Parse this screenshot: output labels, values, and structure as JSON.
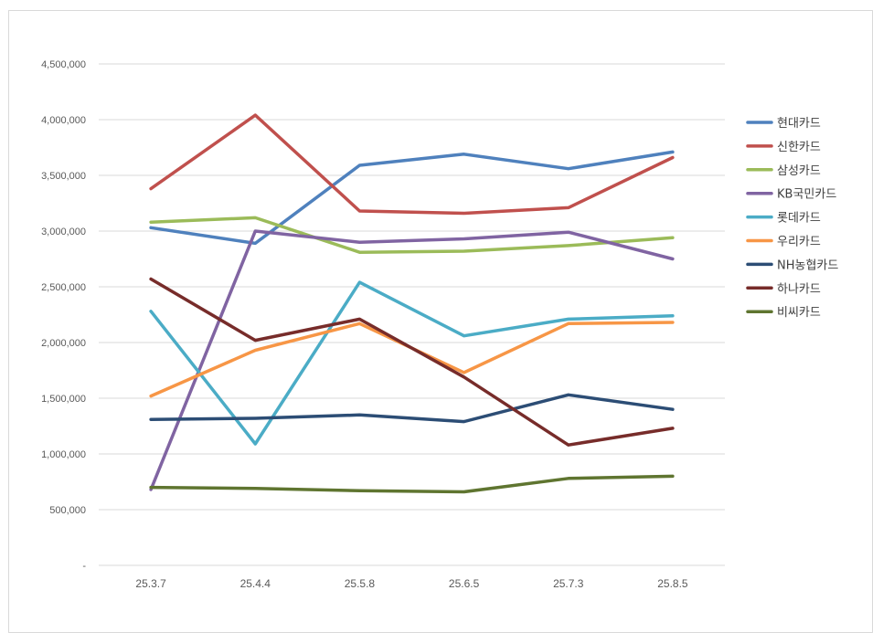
{
  "chart_data": {
    "type": "line",
    "title": "",
    "xlabel": "",
    "ylabel": "",
    "categories": [
      "25.3.7",
      "25.4.4",
      "25.5.8",
      "25.6.5",
      "25.7.3",
      "25.8.5"
    ],
    "ylim": [
      0,
      4500000
    ],
    "y_ticks": [
      0,
      500000,
      1000000,
      1500000,
      2000000,
      2500000,
      3000000,
      3500000,
      4000000,
      4500000
    ],
    "y_tick_labels": [
      "-",
      "500,000",
      "1,000,000",
      "1,500,000",
      "2,000,000",
      "2,500,000",
      "3,000,000",
      "3,500,000",
      "4,000,000",
      "4,500,000"
    ],
    "grid": true,
    "legend_position": "right",
    "series": [
      {
        "name": "현대카드",
        "color": "#4f81bd",
        "values": [
          3030000,
          2890000,
          3590000,
          3690000,
          3560000,
          3710000
        ]
      },
      {
        "name": "신한카드",
        "color": "#c0504d",
        "values": [
          3380000,
          4040000,
          3180000,
          3160000,
          3210000,
          3660000
        ]
      },
      {
        "name": "삼성카드",
        "color": "#9bbb59",
        "values": [
          3080000,
          3120000,
          2810000,
          2820000,
          2870000,
          2940000
        ]
      },
      {
        "name": "KB국민카드",
        "color": "#8064a2",
        "values": [
          680000,
          3000000,
          2900000,
          2930000,
          2990000,
          2750000
        ]
      },
      {
        "name": "롯데카드",
        "color": "#4bacc6",
        "values": [
          2280000,
          1090000,
          2540000,
          2060000,
          2210000,
          2240000
        ]
      },
      {
        "name": "우리카드",
        "color": "#f79646",
        "values": [
          1520000,
          1930000,
          2170000,
          1730000,
          2170000,
          2180000
        ]
      },
      {
        "name": "NH농협카드",
        "color": "#2c4d75",
        "values": [
          1310000,
          1320000,
          1350000,
          1290000,
          1530000,
          1400000
        ]
      },
      {
        "name": "하나카드",
        "color": "#772c2a",
        "values": [
          2570000,
          2020000,
          2210000,
          1690000,
          1080000,
          1230000
        ]
      },
      {
        "name": "비씨카드",
        "color": "#5f7530",
        "values": [
          700000,
          690000,
          670000,
          660000,
          780000,
          800000
        ]
      }
    ]
  }
}
